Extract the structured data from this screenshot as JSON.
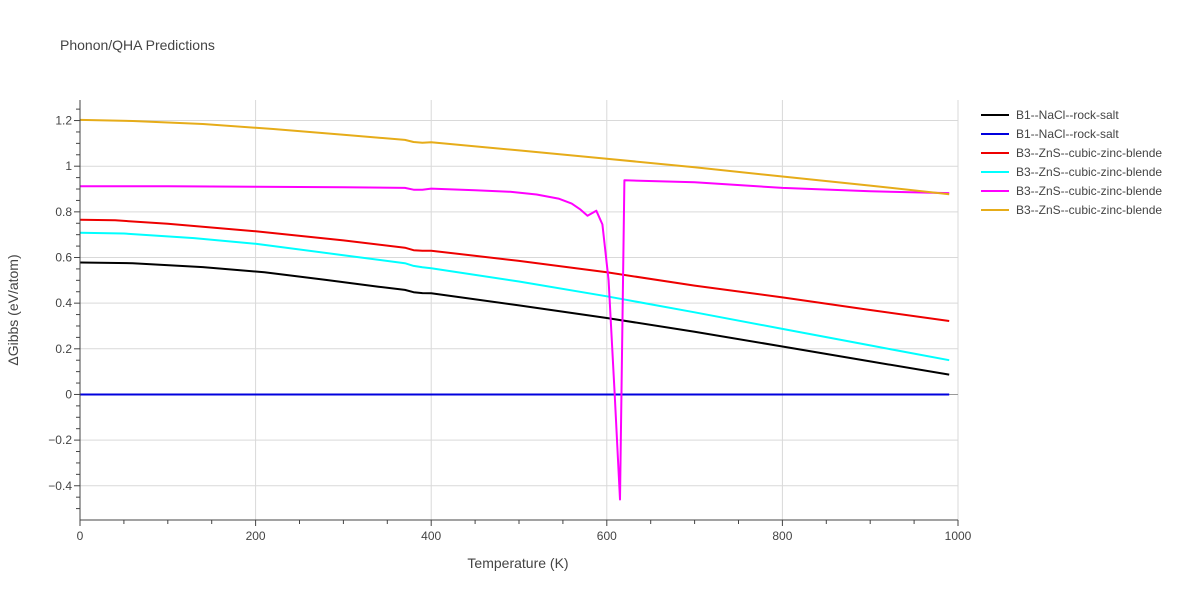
{
  "chart_data": {
    "type": "line",
    "title": "Phonon/QHA Predictions",
    "xlabel": "Temperature (K)",
    "ylabel": "ΔGibbs (eV/atom)",
    "xlim": [
      0,
      1000
    ],
    "ylim": [
      -0.55,
      1.29
    ],
    "x_ticks": [
      0,
      200,
      400,
      600,
      800,
      1000
    ],
    "x_tick_labels": [
      "0",
      "200",
      "400",
      "600",
      "800",
      "1000"
    ],
    "y_ticks": [
      -0.4,
      -0.2,
      0,
      0.2,
      0.4,
      0.6,
      0.8,
      1,
      1.2
    ],
    "y_tick_labels": [
      "−0.4",
      "−0.2",
      "0",
      "0.2",
      "0.4",
      "0.6",
      "0.8",
      "1",
      "1.2"
    ],
    "grid": true,
    "legend_position": "right",
    "series": [
      {
        "name": "B1--NaCl--rock-salt",
        "color": "#000000",
        "x": [
          0,
          60,
          140,
          210,
          280,
          340,
          370,
          380,
          390,
          400,
          500,
          600,
          700,
          800,
          900,
          990
        ],
        "y": [
          0.578,
          0.575,
          0.558,
          0.535,
          0.502,
          0.472,
          0.458,
          0.448,
          0.444,
          0.443,
          0.39,
          0.335,
          0.275,
          0.21,
          0.145,
          0.087
        ]
      },
      {
        "name": "B1--NaCl--rock-salt",
        "color": "#0000dd",
        "x": [
          0,
          990
        ],
        "y": [
          0,
          0
        ]
      },
      {
        "name": "B3--ZnS--cubic-zinc-blende",
        "color": "#ee0000",
        "x": [
          0,
          40,
          100,
          200,
          300,
          370,
          380,
          390,
          400,
          500,
          600,
          700,
          800,
          900,
          990
        ],
        "y": [
          0.765,
          0.763,
          0.748,
          0.715,
          0.675,
          0.643,
          0.632,
          0.63,
          0.63,
          0.585,
          0.535,
          0.477,
          0.425,
          0.37,
          0.322
        ]
      },
      {
        "name": "B3--ZnS--cubic-zinc-blende",
        "color": "#00ffff",
        "x": [
          0,
          50,
          130,
          200,
          300,
          370,
          380,
          390,
          400,
          500,
          600,
          700,
          800,
          900,
          990
        ],
        "y": [
          0.708,
          0.705,
          0.685,
          0.66,
          0.61,
          0.575,
          0.563,
          0.557,
          0.553,
          0.495,
          0.43,
          0.36,
          0.287,
          0.215,
          0.15
        ]
      },
      {
        "name": "B3--ZnS--cubic-zinc-blende",
        "color": "#ff00ff",
        "x": [
          0,
          100,
          200,
          300,
          370,
          380,
          390,
          400,
          450,
          490,
          520,
          545,
          560,
          570,
          578,
          588,
          595,
          602,
          609,
          615,
          620,
          700,
          800,
          900,
          990
        ],
        "y": [
          0.912,
          0.912,
          0.91,
          0.908,
          0.905,
          0.897,
          0.897,
          0.902,
          0.895,
          0.888,
          0.876,
          0.858,
          0.836,
          0.81,
          0.783,
          0.805,
          0.745,
          0.5,
          0.0,
          -0.46,
          0.938,
          0.93,
          0.905,
          0.89,
          0.882
        ]
      },
      {
        "name": "B3--ZnS--cubic-zinc-blende",
        "color": "#e6ac19",
        "x": [
          0,
          60,
          140,
          220,
          300,
          370,
          380,
          390,
          400,
          500,
          600,
          700,
          800,
          900,
          990
        ],
        "y": [
          1.203,
          1.198,
          1.185,
          1.163,
          1.138,
          1.115,
          1.106,
          1.103,
          1.105,
          1.069,
          1.033,
          0.995,
          0.955,
          0.915,
          0.877
        ]
      }
    ]
  }
}
